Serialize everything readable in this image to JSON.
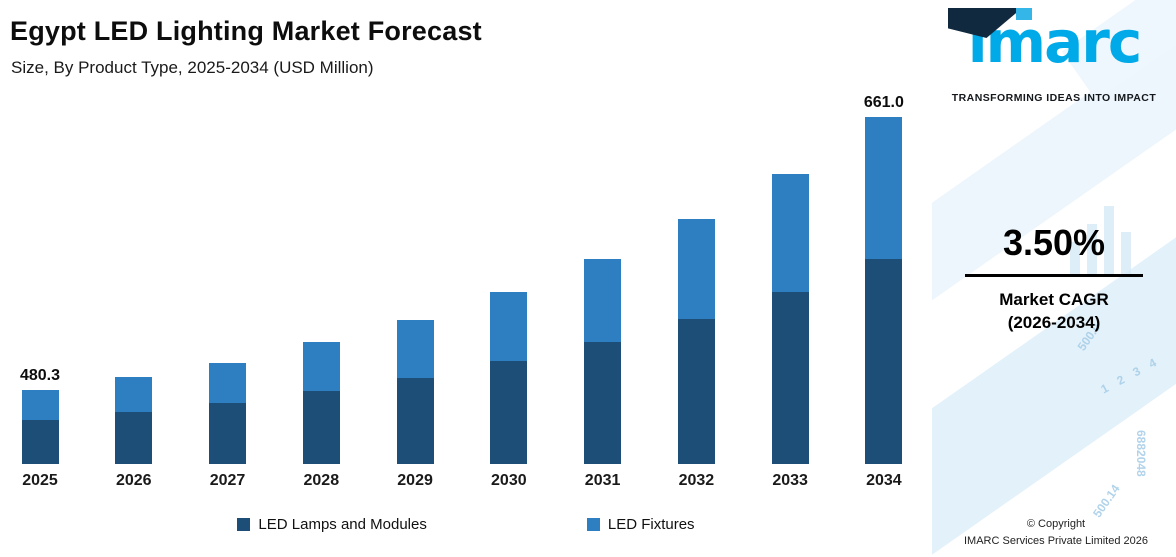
{
  "header": {
    "title": "Egypt LED Lighting Market Forecast",
    "subtitle": "Size, By Product Type, 2025-2034 (USD Million)"
  },
  "chart_data": {
    "type": "bar",
    "stacked": true,
    "title": "Egypt LED Lighting Market Forecast",
    "subtitle": "Size, By Product Type, 2025-2034 (USD Million)",
    "categories": [
      "2025",
      "2026",
      "2027",
      "2028",
      "2029",
      "2030",
      "2031",
      "2032",
      "2033",
      "2034"
    ],
    "series": [
      {
        "name": "LED Lamps and Modules",
        "color": "#1d4e78",
        "values": [
          44,
          52,
          61,
          73,
          86,
          103,
          122,
          145,
          172,
          205
        ],
        "units": "display-relative"
      },
      {
        "name": "LED Fixtures",
        "color": "#2e7fc2",
        "values": [
          30,
          35,
          40,
          49,
          58,
          69,
          83,
          100,
          118,
          142
        ],
        "units": "display-relative"
      }
    ],
    "value_labels": {
      "2025": "480.3",
      "2034": "661.0"
    },
    "labeled_totals_usd_million": {
      "2025": 480.3,
      "2034": 661.0
    },
    "xlabel": "",
    "ylabel": "",
    "grid": false,
    "legend_position": "bottom"
  },
  "legend": {
    "items": [
      {
        "label": "LED Lamps and Modules",
        "color": "#1d4e78"
      },
      {
        "label": "LED Fixtures",
        "color": "#2e7fc2"
      }
    ]
  },
  "sidebar": {
    "logo_text": "imarc",
    "tagline": "TRANSFORMING IDEAS INTO IMPACT",
    "cagr_value": "3.50%",
    "cagr_label_line1": "Market CAGR",
    "cagr_label_line2": "(2026-2034)",
    "copyright_line1": "© Copyright",
    "copyright_line2": "IMARC Services Private Limited 2026",
    "decor_texts": [
      "500.0",
      "1 2 3 4",
      "6882048",
      "500.14"
    ],
    "accent_blue": "#00a9e8",
    "navy": "#10293e"
  }
}
